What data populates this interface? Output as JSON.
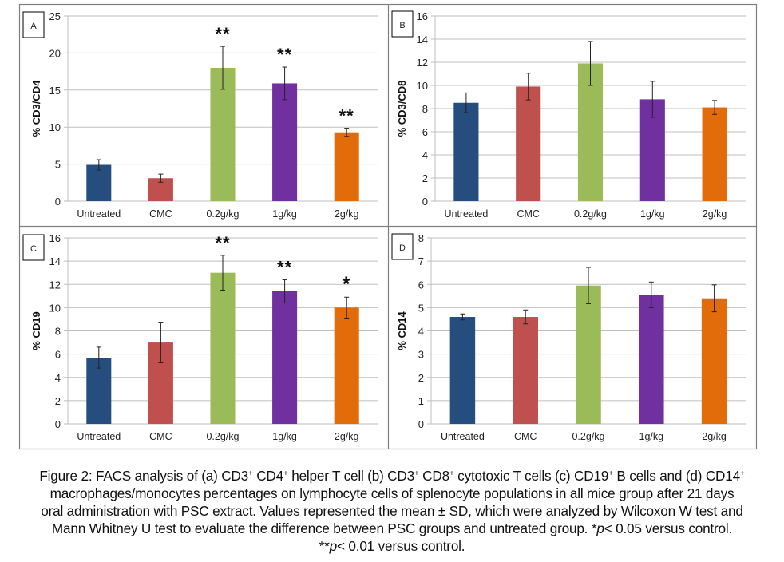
{
  "figure": {
    "caption": {
      "prefix": "Figure 2: FACS analysis of (a) CD3",
      "sup1": "+",
      "t1": " CD4",
      "sup2": "+",
      "t2": " helper T cell (b) CD3",
      "sup3": "+",
      "t3": " CD8",
      "sup4": "+",
      "t4": " cytotoxic T cells (c) CD19",
      "sup5": "+",
      "t5": " B cells and (d) CD14",
      "sup6": "+",
      "line2": "macrophages/monocytes percentages on lymphocyte cells of splenocyte populations in all mice group after 21 days",
      "line3": "oral administration with PSC extract. Values represented the mean ± SD, which were analyzed by Wilcoxon W test and",
      "line4a": "Mann Whitney U test to evaluate the difference between PSC groups and untreated group. *",
      "p1": "p",
      "line4b": "< 0.05 versus control.",
      "line5a": "**",
      "p2": "p",
      "line5b": "< 0.01 versus control."
    },
    "colors": {
      "Untreated": "#254E7E",
      "CMC": "#C0504D",
      "0.2g/kg": "#9BBB59",
      "1g/kg": "#7030A0",
      "2g/kg": "#E36C0A",
      "grid": "#BFBFBF",
      "frame": "#808080"
    }
  },
  "chart_data": [
    {
      "type": "bar",
      "panel_label": "A",
      "title": "",
      "xlabel": "",
      "ylabel": "% CD3/CD4",
      "categories": [
        "Untreated",
        "CMC",
        "0.2g/kg",
        "1g/kg",
        "2g/kg"
      ],
      "values": [
        4.9,
        3.1,
        18.0,
        15.9,
        9.3
      ],
      "error": [
        0.7,
        0.55,
        2.9,
        2.2,
        0.55
      ],
      "significance": [
        "",
        "",
        "**",
        "**",
        "**"
      ],
      "ylim": [
        0,
        25
      ],
      "yticks": [
        0,
        5,
        10,
        15,
        20,
        25
      ],
      "grid": true
    },
    {
      "type": "bar",
      "panel_label": "B",
      "title": "",
      "xlabel": "",
      "ylabel": "% CD3/CD8",
      "categories": [
        "Untreated",
        "CMC",
        "0.2g/kg",
        "1g/kg",
        "2g/kg"
      ],
      "values": [
        8.5,
        9.9,
        11.9,
        8.8,
        8.1
      ],
      "error": [
        0.85,
        1.15,
        1.9,
        1.55,
        0.6
      ],
      "significance": [
        "",
        "",
        "",
        "",
        ""
      ],
      "ylim": [
        0,
        16
      ],
      "yticks": [
        0,
        2,
        4,
        6,
        8,
        10,
        12,
        14,
        16
      ],
      "grid": true
    },
    {
      "type": "bar",
      "panel_label": "C",
      "title": "",
      "xlabel": "",
      "ylabel": "% CD19",
      "categories": [
        "Untreated",
        "CMC",
        "0.2g/kg",
        "1g/kg",
        "2g/kg"
      ],
      "values": [
        5.7,
        7.0,
        13.0,
        11.4,
        10.0
      ],
      "error": [
        0.9,
        1.75,
        1.5,
        1.0,
        0.9
      ],
      "significance": [
        "",
        "",
        "**",
        "**",
        "*"
      ],
      "ylim": [
        0,
        16
      ],
      "yticks": [
        0,
        2,
        4,
        6,
        8,
        10,
        12,
        14,
        16
      ],
      "grid": true
    },
    {
      "type": "bar",
      "panel_label": "D",
      "title": "",
      "xlabel": "",
      "ylabel": "% CD14",
      "categories": [
        "Untreated",
        "CMC",
        "0.2g/kg",
        "1g/kg",
        "2g/kg"
      ],
      "values": [
        4.6,
        4.6,
        5.95,
        5.55,
        5.4
      ],
      "error": [
        0.13,
        0.3,
        0.78,
        0.55,
        0.58
      ],
      "significance": [
        "",
        "",
        "",
        "",
        ""
      ],
      "ylim": [
        0,
        8
      ],
      "yticks": [
        0,
        1,
        2,
        3,
        4,
        5,
        6,
        7,
        8
      ],
      "grid": true
    }
  ]
}
